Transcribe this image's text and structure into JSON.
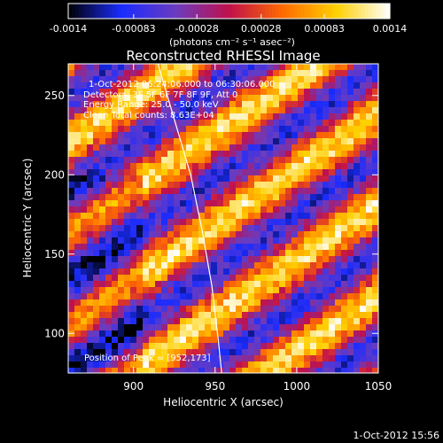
{
  "chart_data": {
    "type": "heatmap",
    "title": "Reconstructed RHESSI Image",
    "xlabel": "Heliocentric X (arcsec)",
    "ylabel": "Heliocentric Y (arcsec)",
    "xlim": [
      860,
      1050
    ],
    "ylim": [
      75,
      270
    ],
    "xticks": [
      900,
      950,
      1000,
      1050
    ],
    "yticks": [
      100,
      150,
      200,
      250
    ],
    "colorbar": {
      "min": -0.0014,
      "max": 0.0014,
      "tick_values": [
        -0.0014,
        -0.00083,
        -0.00028,
        0.00028,
        0.00083,
        0.0014
      ],
      "tick_labels": [
        "-0.0014",
        "-0.00083",
        "-0.00028",
        "0.00028",
        "0.00083",
        "0.0014"
      ],
      "colormap": [
        "#000000",
        "#1a2cff",
        "#6a3cc0",
        "#c0104c",
        "#ff6a00",
        "#ffd000",
        "#ffffff"
      ]
    },
    "units_label": "(photons cm⁻² s⁻¹ asec⁻²)",
    "annotations": {
      "time": "1-Oct-2012 06:24:06.000 to 06:30:06.000",
      "detectors": "Detectors: 3F 5F 6F 7F 8F 9F, Att 0",
      "energy": "Energy Range: 25.0 - 50.0 keV",
      "clean": "Clean     Total counts: 8.63E+04",
      "peak": "Position of Peak = [952,173]"
    },
    "peak": [
      952,
      173
    ],
    "limb": [
      [
        915,
        270
      ],
      [
        925,
        235
      ],
      [
        935,
        200
      ],
      [
        942,
        165
      ],
      [
        948,
        130
      ],
      [
        952,
        95
      ],
      [
        954,
        75
      ]
    ],
    "stripes": {
      "angle_deg": -55,
      "period_arcsec": 47,
      "peak_value": 0.0014,
      "trough_value": -0.00083
    }
  },
  "footer": {
    "timestamp": "1-Oct-2012 15:56"
  }
}
